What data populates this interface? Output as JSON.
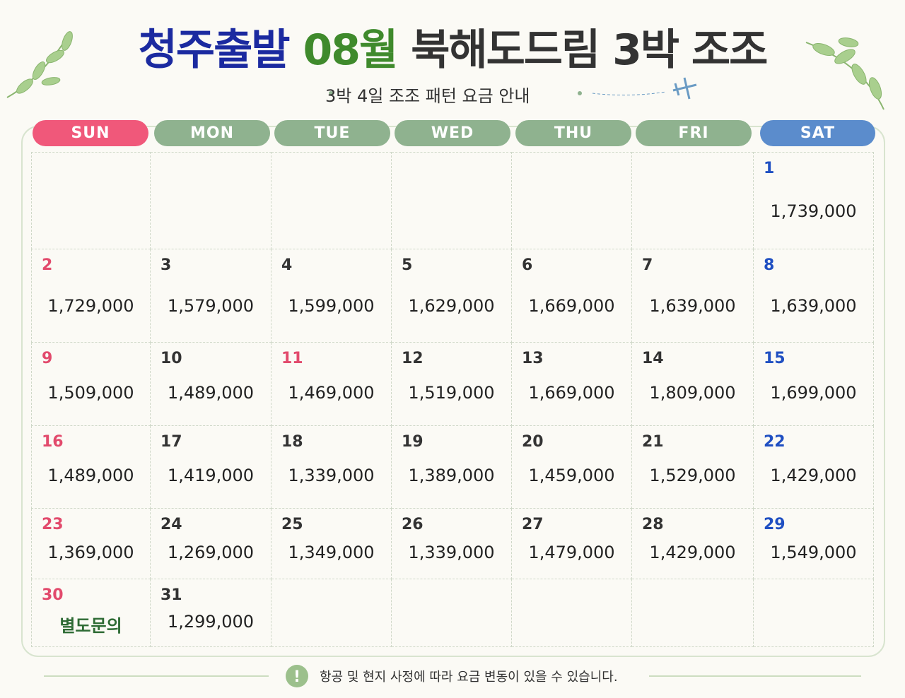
{
  "header": {
    "title_parts": [
      {
        "text": "청주출발",
        "color": "#1b2aa0"
      },
      {
        "text": "08월",
        "color": "#3f8a2c"
      },
      {
        "text": "북해도드림 3박 조조",
        "color": "#333333"
      }
    ],
    "subtitle": "3박 4일 조조 패턴 요금 안내"
  },
  "calendar": {
    "days": [
      {
        "label": "SUN",
        "color": "#f0587a"
      },
      {
        "label": "MON",
        "color": "#8fb28f"
      },
      {
        "label": "TUE",
        "color": "#8fb28f"
      },
      {
        "label": "WED",
        "color": "#8fb28f"
      },
      {
        "label": "THU",
        "color": "#8fb28f"
      },
      {
        "label": "FRI",
        "color": "#8fb28f"
      },
      {
        "label": "SAT",
        "color": "#5b8ccc"
      }
    ],
    "sunday_color": "#e24a6c",
    "saturday_color": "#1f4fc2",
    "holiday_color": "#e24a6c",
    "weeks": [
      [
        null,
        null,
        null,
        null,
        null,
        null,
        {
          "day": "1",
          "price": "1,739,000"
        }
      ],
      [
        {
          "day": "2",
          "price": "1,729,000"
        },
        {
          "day": "3",
          "price": "1,579,000"
        },
        {
          "day": "4",
          "price": "1,599,000"
        },
        {
          "day": "5",
          "price": "1,629,000"
        },
        {
          "day": "6",
          "price": "1,669,000"
        },
        {
          "day": "7",
          "price": "1,639,000"
        },
        {
          "day": "8",
          "price": "1,639,000"
        }
      ],
      [
        {
          "day": "9",
          "price": "1,509,000"
        },
        {
          "day": "10",
          "price": "1,489,000"
        },
        {
          "day": "11",
          "price": "1,469,000",
          "holiday": true
        },
        {
          "day": "12",
          "price": "1,519,000"
        },
        {
          "day": "13",
          "price": "1,669,000"
        },
        {
          "day": "14",
          "price": "1,809,000"
        },
        {
          "day": "15",
          "price": "1,699,000"
        }
      ],
      [
        {
          "day": "16",
          "price": "1,489,000"
        },
        {
          "day": "17",
          "price": "1,419,000"
        },
        {
          "day": "18",
          "price": "1,339,000"
        },
        {
          "day": "19",
          "price": "1,389,000"
        },
        {
          "day": "20",
          "price": "1,459,000"
        },
        {
          "day": "21",
          "price": "1,529,000"
        },
        {
          "day": "22",
          "price": "1,429,000"
        }
      ],
      [
        {
          "day": "23",
          "price": "1,369,000"
        },
        {
          "day": "24",
          "price": "1,269,000"
        },
        {
          "day": "25",
          "price": "1,349,000"
        },
        {
          "day": "26",
          "price": "1,339,000"
        },
        {
          "day": "27",
          "price": "1,479,000"
        },
        {
          "day": "28",
          "price": "1,429,000"
        },
        {
          "day": "29",
          "price": "1,549,000"
        }
      ],
      [
        {
          "day": "30",
          "price": "별도문의",
          "price_color": "#2e6b34"
        },
        {
          "day": "31",
          "price": "1,299,000"
        },
        null,
        null,
        null,
        null,
        null
      ]
    ]
  },
  "footer": {
    "note": "항공 및 현지 사정에 따라 요금 변동이 있을 수 있습니다."
  }
}
